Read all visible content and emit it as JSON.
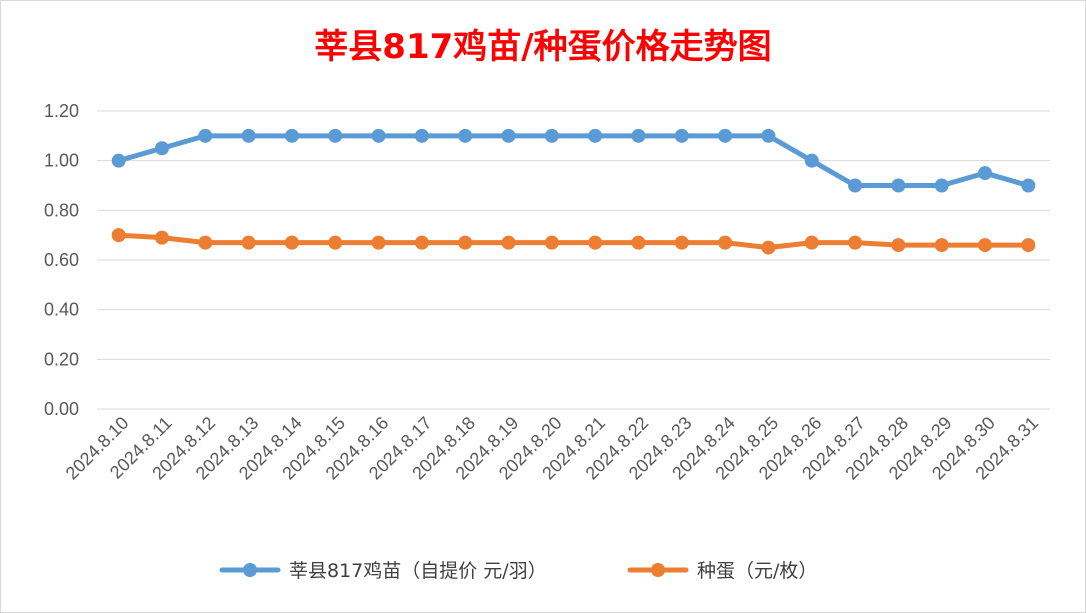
{
  "chart_data": {
    "type": "line",
    "title": "莘县817鸡苗/种蛋价格走势图",
    "xlabel": "",
    "ylabel": "",
    "ylim": [
      0,
      1.2
    ],
    "yticks": [
      "0.00",
      "0.20",
      "0.40",
      "0.60",
      "0.80",
      "1.00",
      "1.20"
    ],
    "grid": true,
    "legend_position": "bottom",
    "categories": [
      "2024.8.10",
      "2024.8.11",
      "2024.8.12",
      "2024.8.13",
      "2024.8.14",
      "2024.8.15",
      "2024.8.16",
      "2024.8.17",
      "2024.8.18",
      "2024.8.19",
      "2024.8.20",
      "2024.8.21",
      "2024.8.22",
      "2024.8.23",
      "2024.8.24",
      "2024.8.25",
      "2024.8.26",
      "2024.8.27",
      "2024.8.28",
      "2024.8.29",
      "2024.8.30",
      "2024.8.31"
    ],
    "series": [
      {
        "name": "莘县817鸡苗（自提价 元/羽）",
        "color": "#5b9bd5",
        "values": [
          1.0,
          1.05,
          1.1,
          1.1,
          1.1,
          1.1,
          1.1,
          1.1,
          1.1,
          1.1,
          1.1,
          1.1,
          1.1,
          1.1,
          1.1,
          1.1,
          1.0,
          0.9,
          0.9,
          0.9,
          0.95,
          0.9
        ]
      },
      {
        "name": "种蛋（元/枚）",
        "color": "#ed7d31",
        "values": [
          0.7,
          0.69,
          0.67,
          0.67,
          0.67,
          0.67,
          0.67,
          0.67,
          0.67,
          0.67,
          0.67,
          0.67,
          0.67,
          0.67,
          0.67,
          0.65,
          0.67,
          0.67,
          0.66,
          0.66,
          0.66,
          0.66
        ]
      }
    ]
  }
}
